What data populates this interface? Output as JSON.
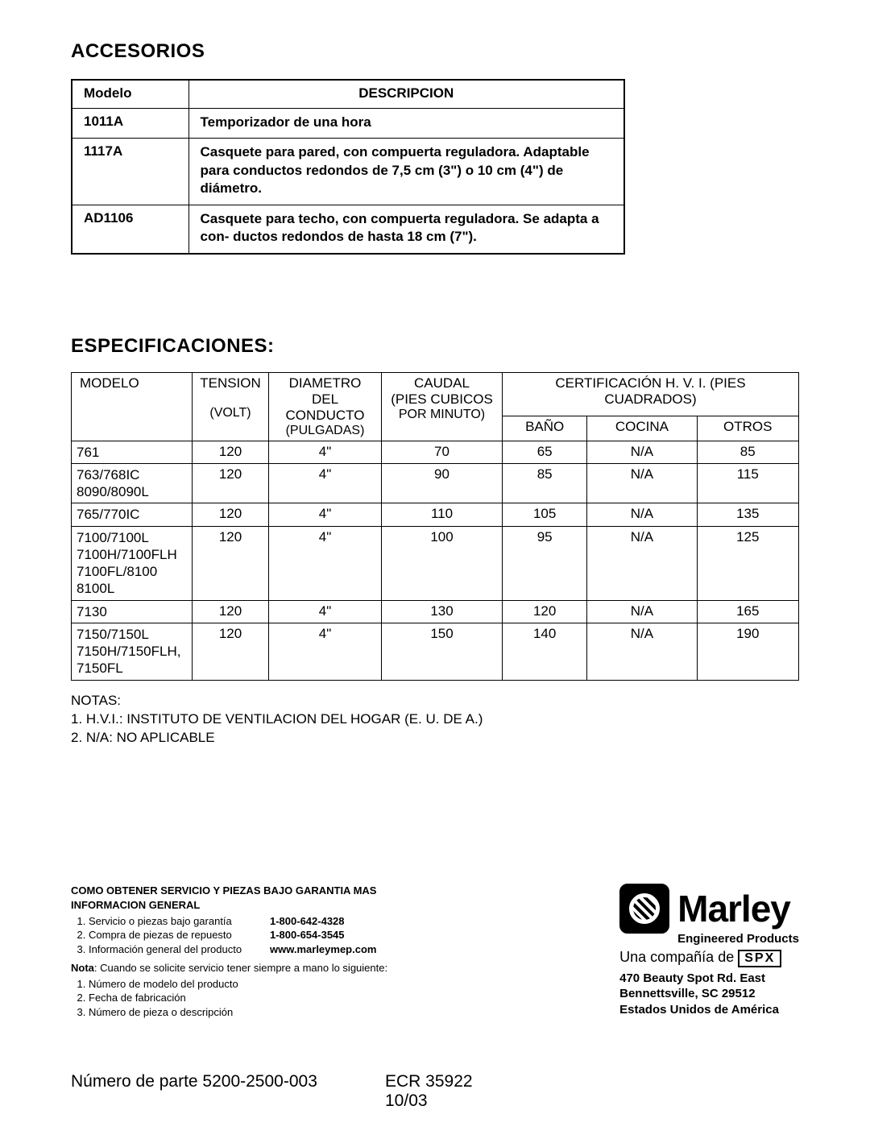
{
  "accesorios": {
    "title": "ACCESORIOS",
    "headers": {
      "model": "Modelo",
      "desc": "DESCRIPCION"
    },
    "rows": [
      {
        "model": "1011A",
        "desc": "Temporizador de una hora"
      },
      {
        "model": "1117A",
        "desc": "Casquete para pared, con compuerta reguladora. Adaptable para conductos redondos de 7,5 cm (3\") o 10 cm (4\") de diámetro."
      },
      {
        "model": "AD1106",
        "desc": "Casquete para techo, con compuerta reguladora. Se adapta a con- ductos redondos de hasta 18 cm (7\")."
      }
    ]
  },
  "especificaciones": {
    "title": "ESPECIFICACIONES:",
    "headers": {
      "model": "MODELO",
      "volt_top": "TENSION",
      "volt_sub": "(VOLT)",
      "diam_top": "DIAMETRO DEL",
      "diam_mid": "CONDUCTO",
      "diam_sub": "(PULGADAS)",
      "cfm_top": "CAUDAL",
      "cfm_mid": "(PIES CUBICOS",
      "cfm_sub": "POR MINUTO)",
      "cert": "CERTIFICACIÓN H. V. I. (PIES CUADRADOS)",
      "bath": "BAÑO",
      "kitchen": "COCINA",
      "other": "OTROS"
    },
    "rows": [
      {
        "model": "761",
        "volt": "120",
        "diam": "4\"",
        "cfm": "70",
        "bath": "65",
        "kitchen": "N/A",
        "other": "85"
      },
      {
        "model": "763/768IC\n8090/8090L",
        "volt": "120",
        "diam": "4\"",
        "cfm": "90",
        "bath": "85",
        "kitchen": "N/A",
        "other": "115"
      },
      {
        "model": "765/770IC",
        "volt": "120",
        "diam": "4\"",
        "cfm": "110",
        "bath": "105",
        "kitchen": "N/A",
        "other": "135"
      },
      {
        "model": "7100/7100L\n7100H/7100FLH\n7100FL/8100\n8100L",
        "volt": "120",
        "diam": "4\"",
        "cfm": "100",
        "bath": "95",
        "kitchen": "N/A",
        "other": "125"
      },
      {
        "model": "7130",
        "volt": "120",
        "diam": "4\"",
        "cfm": "130",
        "bath": "120",
        "kitchen": "N/A",
        "other": "165"
      },
      {
        "model": "7150/7150L\n7150H/7150FLH,\n7150FL",
        "volt": "120",
        "diam": "4\"",
        "cfm": "150",
        "bath": "140",
        "kitchen": "N/A",
        "other": "190"
      }
    ],
    "notes": {
      "h": "NOTAS:",
      "n1": "1. H.V.I.: INSTITUTO DE VENTILACION DEL HOGAR (E. U. DE A.)",
      "n2": "2. N/A: NO APLICABLE"
    }
  },
  "service": {
    "h1": "COMO OBTENER SERVICIO Y PIEZAS BAJO GARANTIA MAS",
    "h2": "INFORMACION GENERAL",
    "items": [
      {
        "lbl": "Servicio o piezas bajo garantía",
        "val": "1-800-642-4328"
      },
      {
        "lbl": "Compra de piezas de repuesto",
        "val": "1-800-654-3545"
      },
      {
        "lbl": "Información general del producto",
        "val": "www.marleymep.com"
      }
    ],
    "nota_h": "Nota",
    "nota_t": ": Cuando se solicite servicio tener siempre a mano lo siguiente:",
    "nota_items": [
      "Número de modelo del producto",
      "Fecha de fabricación",
      "Número de pieza o descripción"
    ]
  },
  "brand": {
    "name": "Marley",
    "sub": "Engineered Products",
    "company_prefix": "Una compañía de ",
    "company_box": "SPX",
    "addr1": "470 Beauty Spot Rd. East",
    "addr2": "Bennettsville, SC  29512",
    "addr3": "Estados Unidos de América"
  },
  "footer": {
    "part": "Número de parte 5200-2500-003",
    "ecr": "ECR 35922",
    "date": "10/03"
  }
}
